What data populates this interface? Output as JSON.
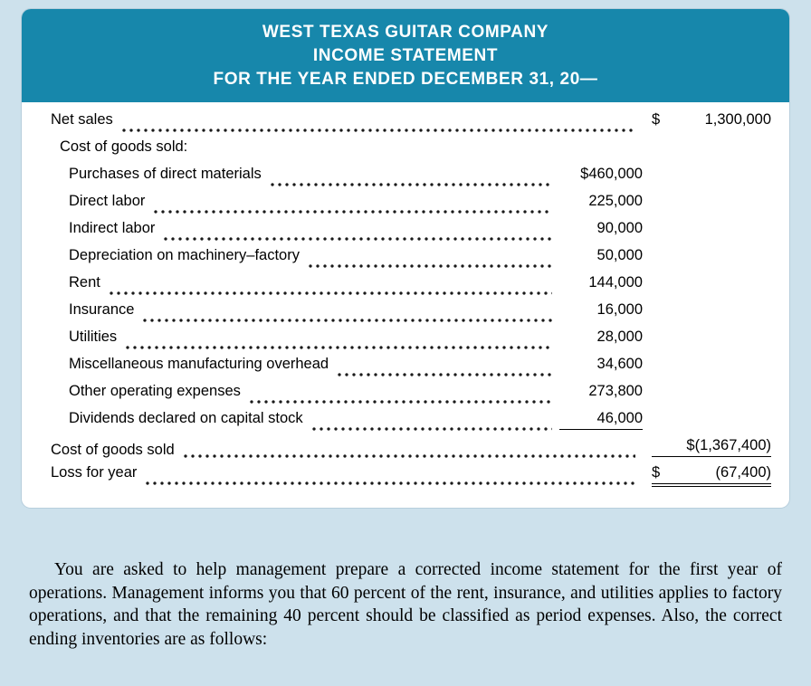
{
  "statement": {
    "title_lines": [
      "WEST TEXAS GUITAR COMPANY",
      "INCOME STATEMENT",
      "FOR THE YEAR ENDED DECEMBER 31, 20—"
    ],
    "rows": [
      {
        "label": "Net sales",
        "indent": 0,
        "col": "outer",
        "prefix": "$",
        "value": "1,300,000",
        "dots": true
      },
      {
        "label": "Cost of goods sold:",
        "indent": 1,
        "col": "none",
        "dots": false
      },
      {
        "label": "Purchases of direct materials",
        "indent": 2,
        "col": "inner",
        "prefix": "$",
        "value": "460,000",
        "dots": true
      },
      {
        "label": "Direct labor",
        "indent": 2,
        "col": "inner",
        "prefix": "",
        "value": "225,000",
        "dots": true
      },
      {
        "label": "Indirect labor",
        "indent": 2,
        "col": "inner",
        "prefix": "",
        "value": "90,000",
        "dots": true
      },
      {
        "label": "Depreciation on machinery–factory",
        "indent": 2,
        "col": "inner",
        "prefix": "",
        "value": "50,000",
        "dots": true
      },
      {
        "label": "Rent",
        "indent": 2,
        "col": "inner",
        "prefix": "",
        "value": "144,000",
        "dots": true
      },
      {
        "label": "Insurance",
        "indent": 2,
        "col": "inner",
        "prefix": "",
        "value": "16,000",
        "dots": true
      },
      {
        "label": "Utilities",
        "indent": 2,
        "col": "inner",
        "prefix": "",
        "value": "28,000",
        "dots": true
      },
      {
        "label": "Miscellaneous manufacturing overhead",
        "indent": 2,
        "col": "inner",
        "prefix": "",
        "value": "34,600",
        "dots": true
      },
      {
        "label": "Other operating expenses",
        "indent": 2,
        "col": "inner",
        "prefix": "",
        "value": "273,800",
        "dots": true
      },
      {
        "label": "Dividends declared on capital stock",
        "indent": 2,
        "col": "inner",
        "prefix": "",
        "value": "46,000",
        "dots": true,
        "underline": "single"
      },
      {
        "label": "Cost of goods sold",
        "indent": 0,
        "col": "outer",
        "prefix": "",
        "value": "$(1,367,400)",
        "dots": true,
        "underline": "single"
      },
      {
        "label": "Loss for year",
        "indent": 0,
        "col": "outer",
        "prefix": "$",
        "value": "(67,400)",
        "dots": true,
        "underline": "double"
      }
    ]
  },
  "paragraph": "You are asked to help management prepare a corrected income statement for the first year of operations. Management informs you that 60 percent of the rent, insurance, and utilities applies to factory operations, and that the remaining 40 percent should be classified as period expenses. Also, the correct ending inventories are as follows:",
  "colors": {
    "header_bg": "#1787ab",
    "page_bg": "#cde1ec",
    "card_bg": "#ffffff"
  }
}
